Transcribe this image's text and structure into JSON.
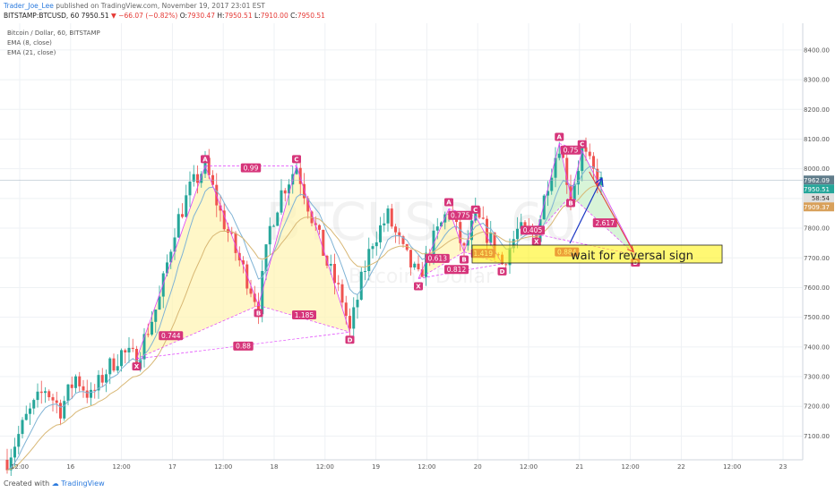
{
  "header": {
    "author": "Trader_Joe_Lee",
    "published_text": "published on TradingView.com, November 19, 2017 23:01 EST",
    "symbol": "BITSTAMP:BTCUSD, 60",
    "last": "7950.51",
    "change": "−66.07 (−0.82%)",
    "o_label": "O:",
    "o_value": "7930.47",
    "h_label": "H:",
    "h_value": "7950.51",
    "l_label": "L:",
    "l_value": "7910.00",
    "c_label": "C:",
    "c_value": "7950.51"
  },
  "legend": {
    "title": "Bitcoin / Dollar, 60, BITSTAMP",
    "ema1": "EMA (8, close)",
    "ema2": "EMA (21, close)"
  },
  "watermark": {
    "symbol": "BTCUSD, 60",
    "name": "Bitcoin / Dollar"
  },
  "annotation_text": "wait for reversal sign",
  "footer": {
    "created_with": "Created with",
    "brand": "TradingView"
  },
  "colors": {
    "up": "#26a69a",
    "down": "#ef5350",
    "ema_fast": "#7fb3d5",
    "ema_slow": "#d8b774",
    "pattern_line": "#e040fb",
    "pattern_label": "#d6357a",
    "yellow_fill": "#fff3b0",
    "green_fill": "#c8f0c8",
    "arrow_blue": "#1a37c4",
    "arrow_red": "#e53935"
  },
  "chart_data": {
    "type": "candlestick",
    "x_ticks": [
      "12:00",
      "16",
      "12:00",
      "17",
      "12:00",
      "18",
      "12:00",
      "19",
      "12:00",
      "20",
      "12:00",
      "21",
      "12:00",
      "22",
      "12:00",
      "23"
    ],
    "y_ticks": [
      7100,
      7200,
      7300,
      7400,
      7500,
      7600,
      7700,
      7800,
      7900,
      8000,
      8100,
      8200,
      8300,
      8400
    ],
    "ylim": [
      7020,
      8490
    ],
    "price_labels": [
      {
        "value": 7962.09,
        "text": "7962.09",
        "color": "#607d8b"
      },
      {
        "value": 7950.51,
        "text": "7950.51",
        "color": "#26a69a"
      },
      {
        "value": 7932.0,
        "text": "58:54",
        "color": "#e0e0e0"
      },
      {
        "value": 7909.37,
        "text": "7909.37",
        "color": "#d8a05a"
      }
    ],
    "patterns": [
      {
        "name": "bat-1",
        "points": [
          {
            "label": "X",
            "t": 34,
            "price": 7360
          },
          {
            "label": "A",
            "t": 52,
            "price": 8010
          },
          {
            "label": "B",
            "t": 66,
            "price": 7540
          },
          {
            "label": "C",
            "t": 76,
            "price": 8010
          },
          {
            "label": "D",
            "t": 90,
            "price": 7450
          }
        ],
        "ratios": [
          {
            "text": "0.99",
            "at": [
              64,
              8000
            ]
          },
          {
            "text": "0.744",
            "at": [
              43,
              7435
            ]
          },
          {
            "text": "1.185",
            "at": [
              78,
              7505
            ]
          },
          {
            "text": "0.88",
            "at": [
              62,
              7400
            ]
          }
        ]
      },
      {
        "name": "bat-2",
        "points": [
          {
            "label": "X",
            "t": 108,
            "price": 7630
          },
          {
            "label": "A",
            "t": 116,
            "price": 7865
          },
          {
            "label": "B",
            "t": 120,
            "price": 7720
          },
          {
            "label": "C",
            "t": 123,
            "price": 7840
          },
          {
            "label": "D",
            "t": 130,
            "price": 7680
          }
        ],
        "ratios": [
          {
            "text": "0.775",
            "at": [
              119,
              7840
            ]
          },
          {
            "text": "0.613",
            "at": [
              113,
              7695
            ]
          },
          {
            "text": "1.419",
            "at": [
              125,
              7712
            ]
          },
          {
            "text": "0.812",
            "at": [
              118,
              7658
            ]
          }
        ]
      },
      {
        "name": "bat-3",
        "points": [
          {
            "label": "X",
            "t": 139,
            "price": 7780
          },
          {
            "label": "A",
            "t": 145,
            "price": 8085
          },
          {
            "label": "B",
            "t": 148,
            "price": 7910
          },
          {
            "label": "C",
            "t": 151,
            "price": 8060
          },
          {
            "label": "D",
            "t": 165,
            "price": 7710
          }
        ],
        "ratios": [
          {
            "text": "0.75",
            "at": [
              148,
              8060
            ]
          },
          {
            "text": "0.405",
            "at": [
              138,
              7790
            ]
          },
          {
            "text": "2.617",
            "at": [
              157,
              7815
            ]
          },
          {
            "text": "0.884",
            "at": [
              147,
              7717
            ]
          }
        ]
      }
    ]
  }
}
